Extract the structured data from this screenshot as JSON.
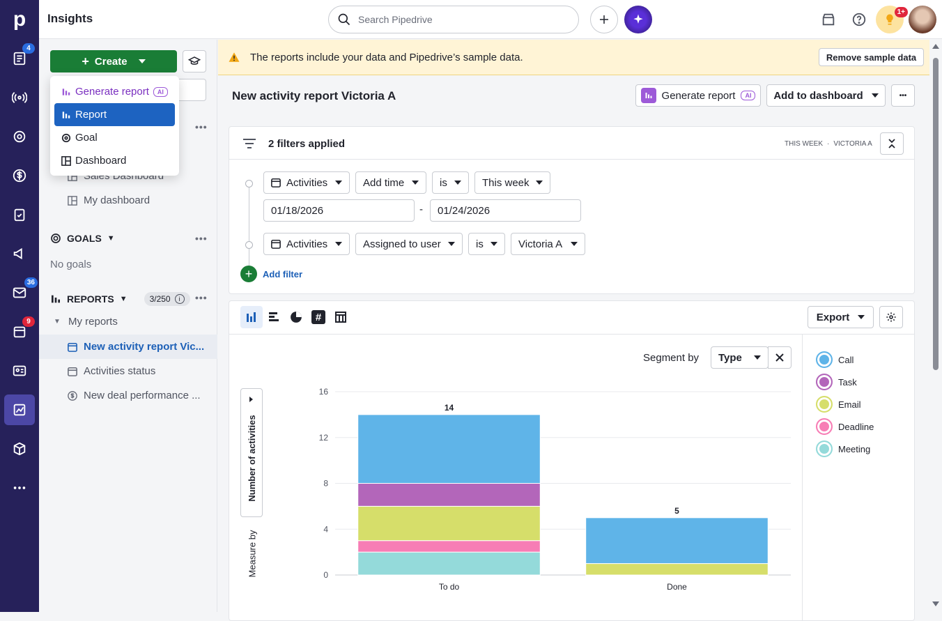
{
  "app": {
    "title": "Insights",
    "logo": "p"
  },
  "search": {
    "placeholder": "Search Pipedrive"
  },
  "rail": {
    "badges": {
      "leads": "4",
      "mail": "36",
      "activities": "9"
    }
  },
  "topbar": {
    "notification_badge": "1+"
  },
  "sidebar": {
    "create_label": "Create",
    "dropdown": {
      "generate": "Generate report",
      "ai": "AI",
      "report": "Report",
      "goal": "Goal",
      "dashboard": "Dashboard"
    },
    "dashboards": [
      "Sales Dashboard",
      "My dashboard"
    ],
    "goals_title": "GOALS",
    "no_goals": "No goals",
    "reports_title": "REPORTS",
    "reports_count": "3/250",
    "my_reports": "My reports",
    "reports": [
      "New activity report Vic...",
      "Activities status",
      "New deal performance ..."
    ]
  },
  "banner": {
    "text": "The reports include your data and Pipedrive’s sample data.",
    "button": "Remove sample data"
  },
  "report": {
    "title": "New activity report Victoria A",
    "generate_label": "Generate report",
    "ai": "AI",
    "add_dashboard": "Add to dashboard"
  },
  "filters": {
    "summary": "2 filters applied",
    "tag1": "THIS WEEK",
    "tag2": "VICTORIA A",
    "row1": {
      "entity": "Activities",
      "field": "Add time",
      "op": "is",
      "value": "This week"
    },
    "date_from": "01/18/2026",
    "date_sep": "-",
    "date_to": "01/24/2026",
    "row2": {
      "entity": "Activities",
      "field": "Assigned to user",
      "op": "is",
      "value": "Victoria A"
    },
    "add_filter": "Add filter"
  },
  "chart_panel": {
    "export": "Export",
    "segment_label": "Segment by",
    "segment_value": "Type",
    "measure_label": "Measure by",
    "measure_value": "Number of activities"
  },
  "chart_data": {
    "type": "bar",
    "stacked": true,
    "categories": [
      "To do",
      "Done"
    ],
    "totals": [
      14,
      5
    ],
    "ylim": [
      0,
      16
    ],
    "yticks": [
      0,
      4,
      8,
      12,
      16
    ],
    "series": [
      {
        "name": "Meeting",
        "color": "#94dada",
        "values": [
          2,
          0
        ]
      },
      {
        "name": "Deadline",
        "color": "#f77db5",
        "values": [
          1,
          0
        ]
      },
      {
        "name": "Email",
        "color": "#d6de6a",
        "values": [
          3,
          1
        ]
      },
      {
        "name": "Task",
        "color": "#b366ba",
        "values": [
          2,
          0
        ]
      },
      {
        "name": "Call",
        "color": "#5fb4e8",
        "values": [
          6,
          4
        ]
      }
    ]
  },
  "legend": [
    {
      "name": "Call",
      "color": "#5fb4e8"
    },
    {
      "name": "Task",
      "color": "#b366ba"
    },
    {
      "name": "Email",
      "color": "#d6de6a"
    },
    {
      "name": "Deadline",
      "color": "#f77db5"
    },
    {
      "name": "Meeting",
      "color": "#94dada"
    }
  ]
}
